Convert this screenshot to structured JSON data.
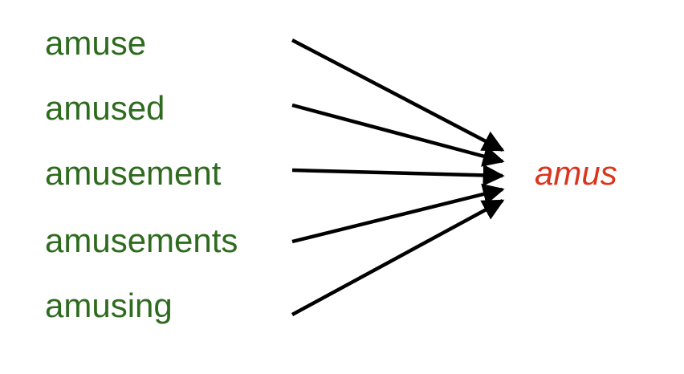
{
  "words": [
    "amuse",
    "amused",
    "amusement",
    "amusements",
    "amusing"
  ],
  "stem": "amus",
  "colors": {
    "word": "#2e6b1f",
    "stem": "#d9351f",
    "arrow": "#000000"
  }
}
